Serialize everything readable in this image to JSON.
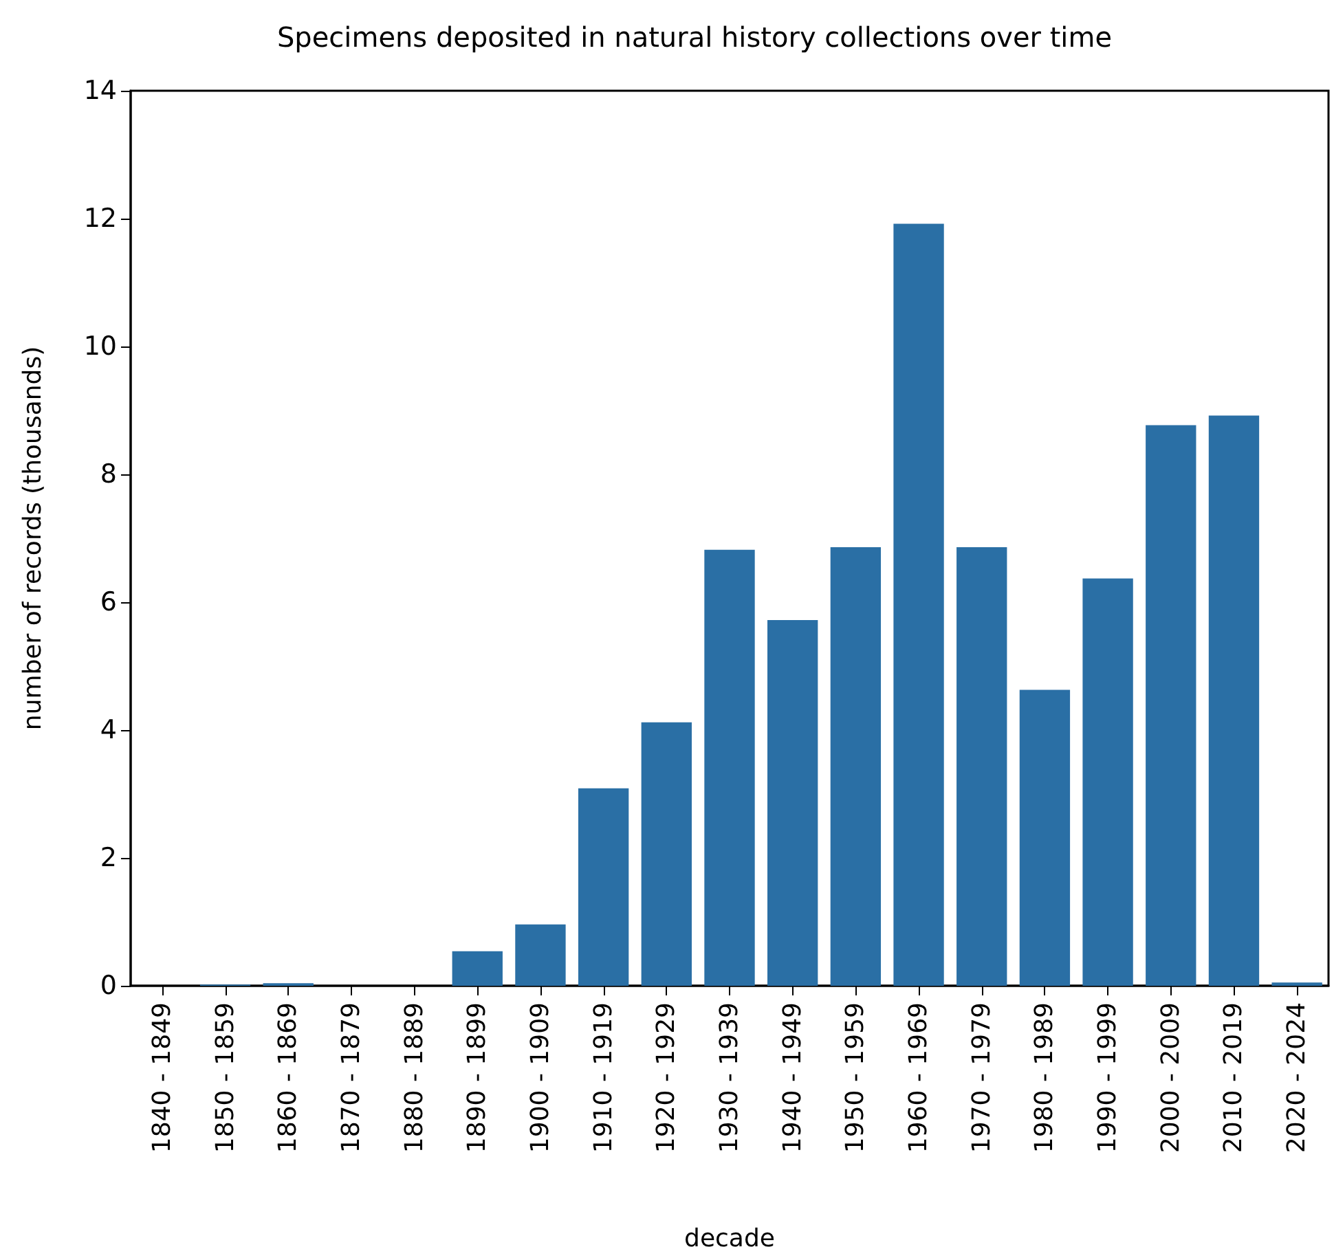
{
  "chart_data": {
    "type": "bar",
    "title": "Specimens deposited in natural history collections over time",
    "xlabel": "decade",
    "ylabel": "number of records (thousands)",
    "categories": [
      "1840 - 1849",
      "1850 - 1859",
      "1860 - 1869",
      "1870 - 1879",
      "1880 - 1889",
      "1890 - 1899",
      "1900 - 1909",
      "1910 - 1919",
      "1920 - 1929",
      "1930 - 1939",
      "1940 - 1949",
      "1950 - 1959",
      "1960 - 1969",
      "1970 - 1979",
      "1980 - 1989",
      "1990 - 1999",
      "2000 - 2009",
      "2010 - 2019",
      "2020 - 2024"
    ],
    "values": [
      0,
      0.02,
      0.04,
      0,
      0,
      0.54,
      0.96,
      3.09,
      4.12,
      6.82,
      5.72,
      6.86,
      11.92,
      6.86,
      4.63,
      6.37,
      8.77,
      8.92,
      0.05
    ],
    "color": "#2a6fa5",
    "ylim": [
      0,
      14
    ],
    "yticks": [
      0,
      2,
      4,
      6,
      8,
      10,
      12,
      14
    ],
    "grid": false
  }
}
